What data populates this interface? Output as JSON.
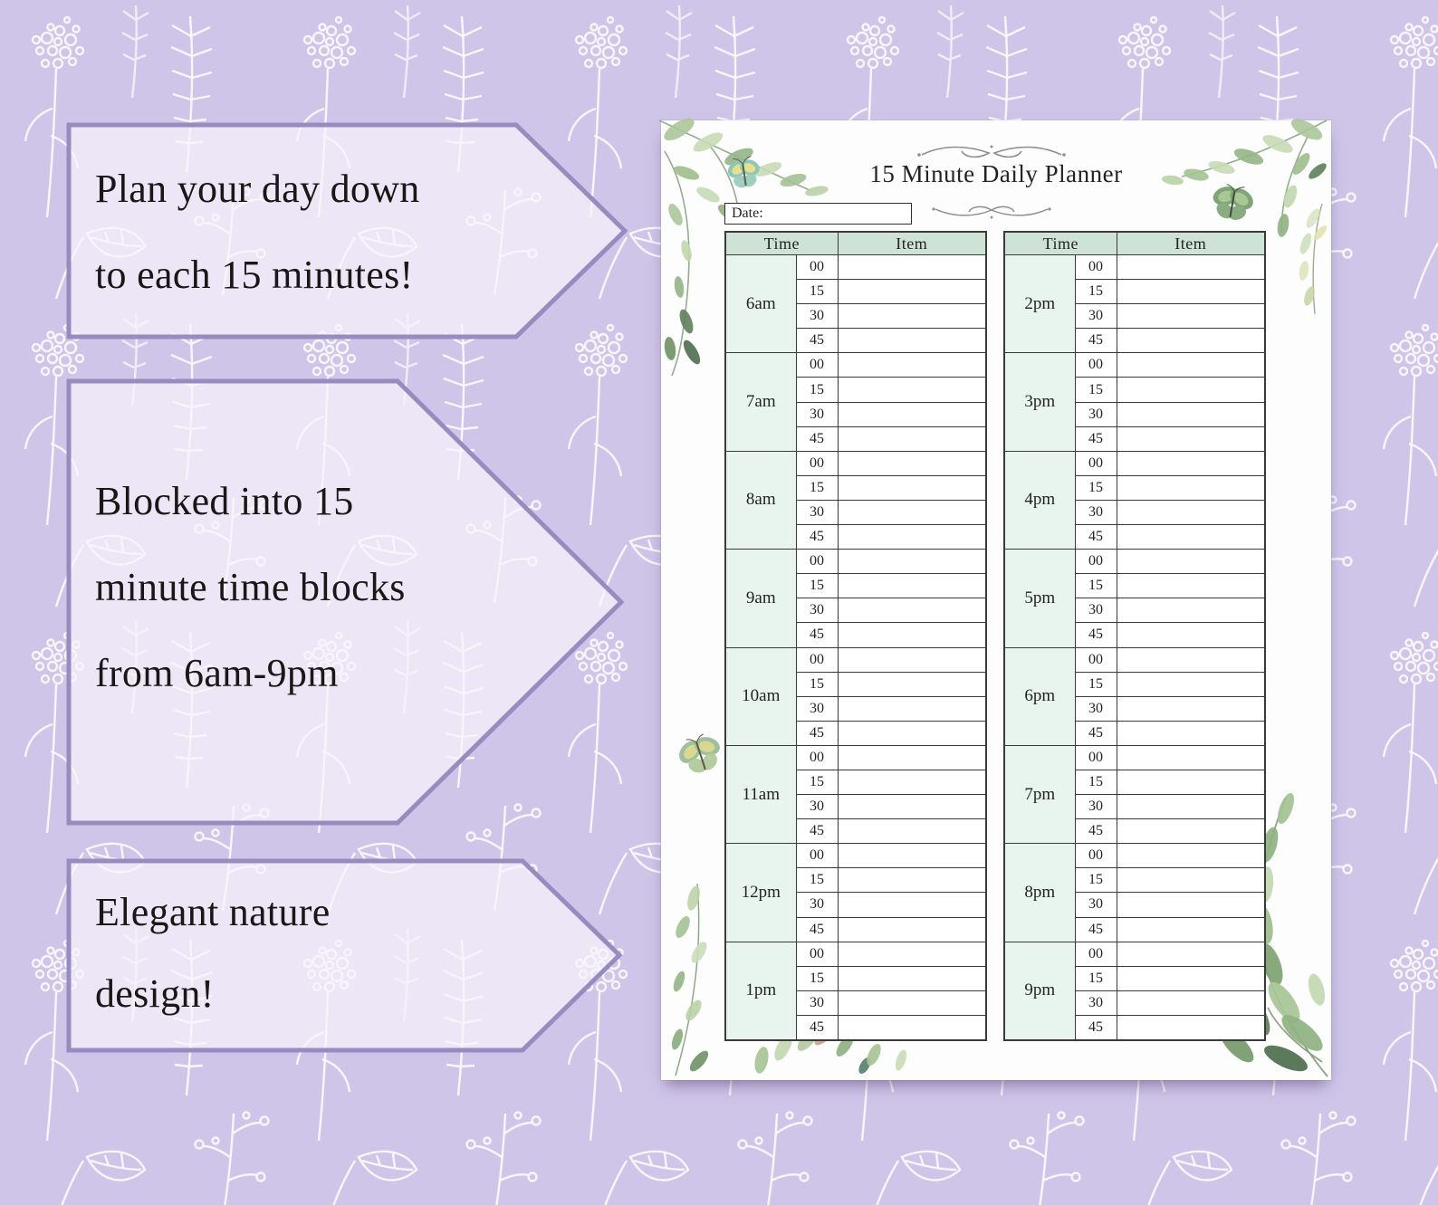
{
  "callouts": [
    {
      "lines": [
        "Plan your day down",
        "to each 15 minutes!"
      ]
    },
    {
      "lines": [
        "Blocked into 15",
        "minute time blocks",
        "from 6am-9pm"
      ]
    },
    {
      "lines": [
        "Elegant nature",
        "design!"
      ]
    }
  ],
  "planner": {
    "title": "15 Minute Daily Planner",
    "date_label": "Date:",
    "column_headers": {
      "time": "Time",
      "item": "Item"
    },
    "minutes": [
      "00",
      "15",
      "30",
      "45"
    ],
    "tables": [
      {
        "hours": [
          "6am",
          "7am",
          "8am",
          "9am",
          "10am",
          "11am",
          "12pm",
          "1pm"
        ]
      },
      {
        "hours": [
          "2pm",
          "3pm",
          "4pm",
          "5pm",
          "6pm",
          "7pm",
          "8pm",
          "9pm"
        ]
      }
    ],
    "item_cells_empty_value": ""
  },
  "decorations": {
    "icons": [
      "butterfly-icon",
      "watercolor-greenery",
      "flourish-divider-icon",
      "floral-line-pattern"
    ]
  },
  "colors": {
    "background_lavender": "#cfc5e9",
    "pattern_white": "#ffffff",
    "callout_border_purple": "#978cc0",
    "callout_fill": "rgba(246,243,252,0.72)",
    "page_white": "#fdfdfe",
    "table_header_green": "#cfe2d6",
    "hour_cell_mint": "#e7f5ee",
    "table_border": "#3a3a3a",
    "text_dark": "#1b1716"
  }
}
